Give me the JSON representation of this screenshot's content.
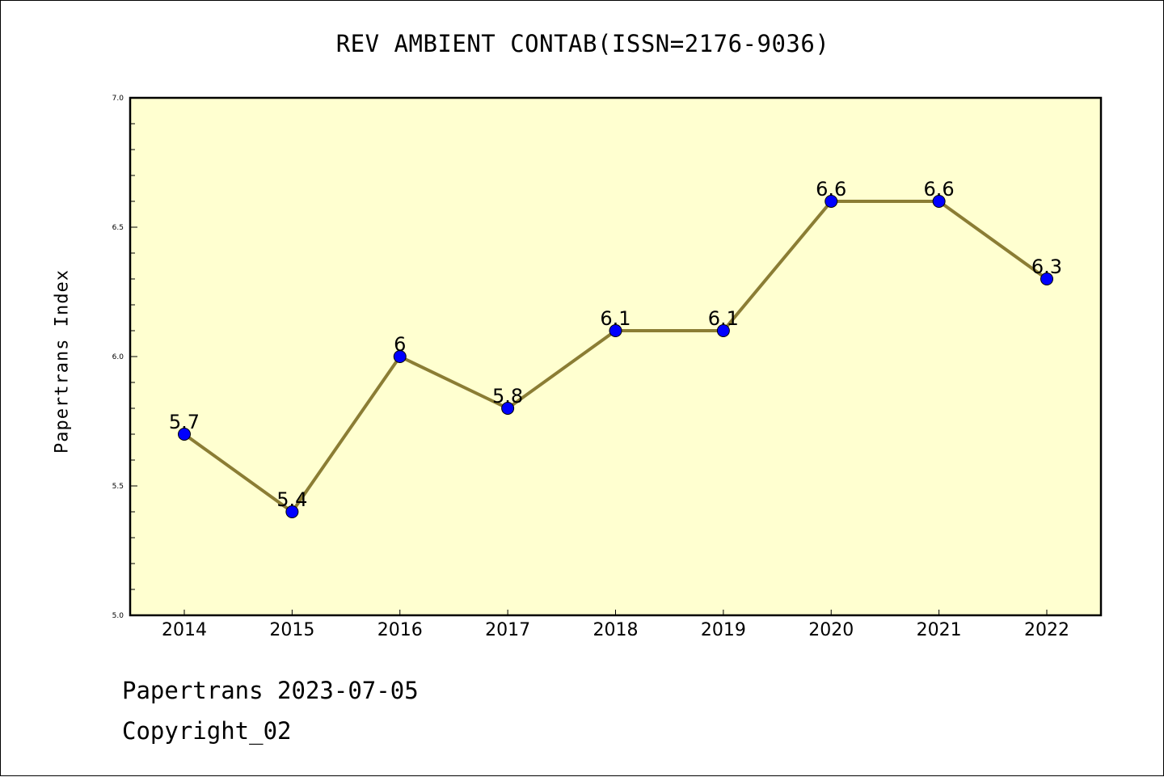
{
  "chart_data": {
    "type": "line",
    "title": "REV AMBIENT CONTAB(ISSN=2176-9036)",
    "xlabel": "",
    "ylabel": "Papertrans Index",
    "categories": [
      "2014",
      "2015",
      "2016",
      "2017",
      "2018",
      "2019",
      "2020",
      "2021",
      "2022"
    ],
    "series": [
      {
        "values": [
          5.7,
          5.4,
          6.0,
          5.8,
          6.1,
          6.1,
          6.6,
          6.6,
          6.3
        ],
        "data_labels": [
          "5.7",
          "5.4",
          "6",
          "5.8",
          "6.1",
          "6.1",
          "6.6",
          "6.6",
          "6.3"
        ],
        "line_color": "#8b7d34",
        "marker_color": "#0000ff"
      }
    ],
    "ylim": [
      5.0,
      7.0
    ],
    "y_ticks": [
      "5.0",
      "5.5",
      "6.0",
      "6.5",
      "7.0"
    ],
    "y_tick_values": [
      5.0,
      5.5,
      6.0,
      6.5,
      7.0
    ],
    "plot_background": "#ffffd0",
    "grid": false,
    "legend": "none"
  },
  "footer": {
    "date_line": "Papertrans 2023-07-05",
    "copyright": "Copyright_02"
  }
}
